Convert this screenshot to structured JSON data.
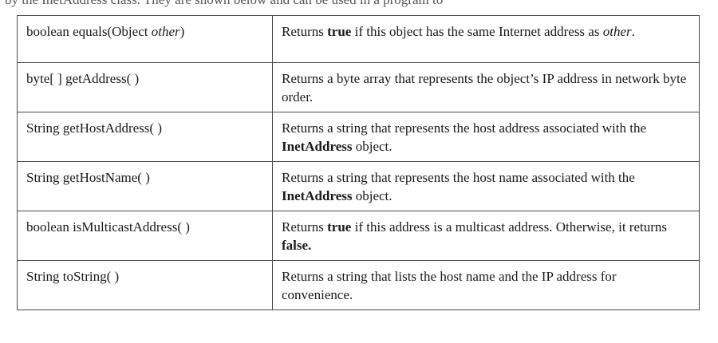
{
  "header_fragment": "by the InetAddress class. They are shown below and can be used in a program to",
  "table": {
    "rows": [
      {
        "signature": [
          {
            "text": "boolean equals(Object ",
            "style": "normal"
          },
          {
            "text": "other",
            "style": "italic"
          },
          {
            "text": ")",
            "style": "normal"
          }
        ],
        "description": [
          {
            "text": "Returns ",
            "style": "normal"
          },
          {
            "text": "true",
            "style": "bold"
          },
          {
            "text": " if this object has the same Internet address as ",
            "style": "normal"
          },
          {
            "text": "other",
            "style": "italic"
          },
          {
            "text": ".",
            "style": "normal"
          }
        ]
      },
      {
        "signature": [
          {
            "text": "byte[ ] getAddress( )",
            "style": "normal"
          }
        ],
        "description": [
          {
            "text": "Returns a byte array that represents the object’s IP address in network byte order.",
            "style": "normal"
          }
        ]
      },
      {
        "signature": [
          {
            "text": "String getHostAddress( )",
            "style": "normal"
          }
        ],
        "description": [
          {
            "text": "Returns a string that represents the host address associated with the ",
            "style": "normal"
          },
          {
            "text": "InetAddress",
            "style": "bold"
          },
          {
            "text": " object.",
            "style": "normal"
          }
        ]
      },
      {
        "signature": [
          {
            "text": "String getHostName( )",
            "style": "normal"
          }
        ],
        "description": [
          {
            "text": "Returns a string that represents the host name associated with the ",
            "style": "normal"
          },
          {
            "text": "InetAddress",
            "style": "bold"
          },
          {
            "text": " object.",
            "style": "normal"
          }
        ]
      },
      {
        "signature": [
          {
            "text": "boolean isMulticastAddress( )",
            "style": "normal"
          }
        ],
        "description": [
          {
            "text": "Returns ",
            "style": "normal"
          },
          {
            "text": "true",
            "style": "bold"
          },
          {
            "text": " if this address is a multicast address. Otherwise, it returns ",
            "style": "normal"
          },
          {
            "text": "false.",
            "style": "bold"
          }
        ]
      },
      {
        "signature": [
          {
            "text": "String toString( )",
            "style": "normal"
          }
        ],
        "description": [
          {
            "text": "Returns a string that lists the host name and the IP address for convenience.",
            "style": "normal"
          }
        ]
      }
    ]
  }
}
